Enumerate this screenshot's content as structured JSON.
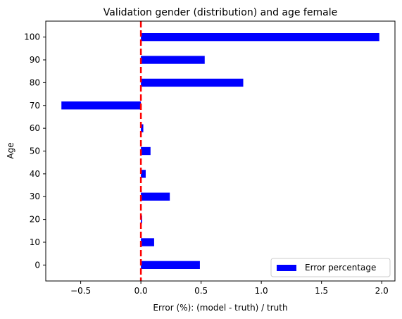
{
  "chart_data": {
    "type": "bar",
    "orientation": "horizontal",
    "title": "Validation gender (distribution) and age female",
    "xlabel": "Error (%): (model - truth) / truth",
    "ylabel": "Age",
    "categories": [
      "0",
      "10",
      "20",
      "30",
      "40",
      "50",
      "60",
      "70",
      "80",
      "90",
      "100"
    ],
    "series": [
      {
        "name": "Error percentage",
        "color": "#0000ff",
        "values": [
          0.49,
          0.11,
          0.01,
          0.24,
          0.04,
          0.08,
          0.02,
          -0.66,
          0.85,
          0.53,
          1.98
        ]
      }
    ],
    "xlim": [
      -0.79,
      2.11
    ],
    "x_ticks": [
      -0.5,
      0.0,
      0.5,
      1.0,
      1.5,
      2.0
    ],
    "x_tick_labels": [
      "−0.5",
      "0.0",
      "0.5",
      "1.0",
      "1.5",
      "2.0"
    ],
    "reference_line": {
      "x": 0,
      "color": "#ff0000",
      "style": "dashed"
    },
    "grid": false,
    "legend_position": "lower-right"
  }
}
